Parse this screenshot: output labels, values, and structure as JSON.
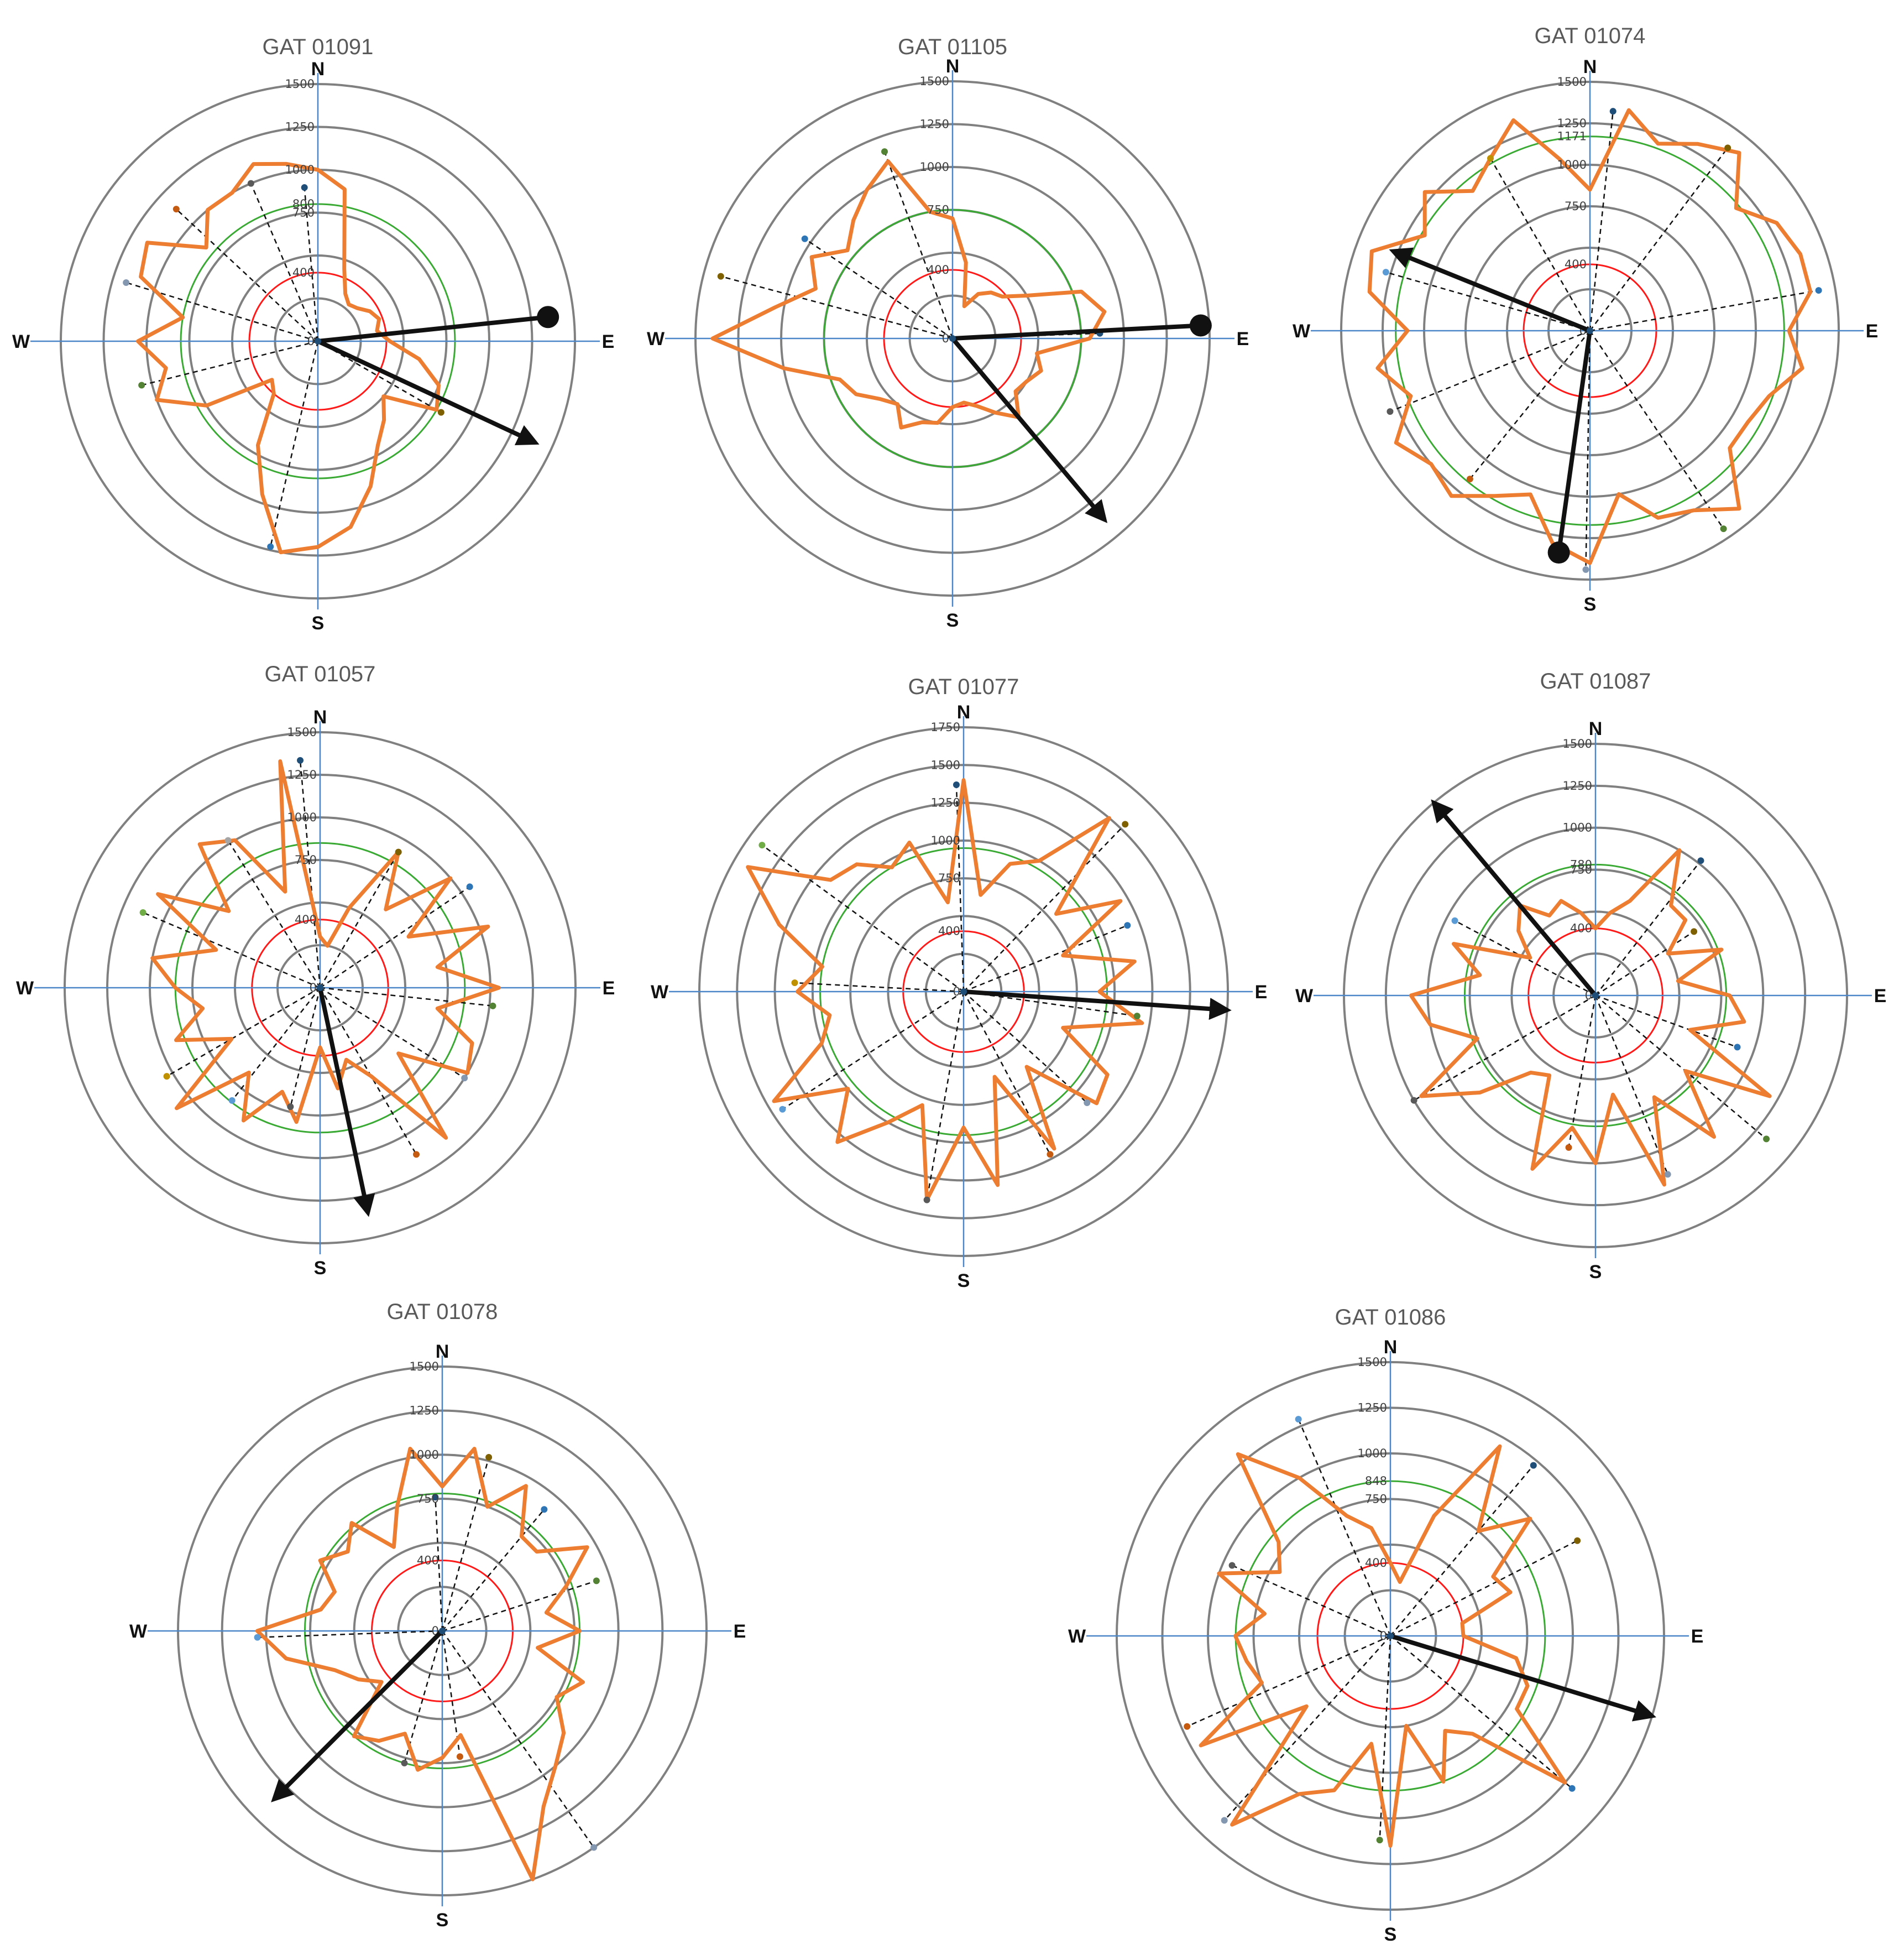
{
  "colors": {
    "rings": "#808080",
    "axes": "#4a86c8",
    "profile": "#ed7d31",
    "dashed": "#111111",
    "arrow": "#111111",
    "red_ring": "#ff1a1a",
    "green_ring": "#3aaa35"
  },
  "chart_data": [
    {
      "type": "radar",
      "title": "GAT 01091",
      "compass": [
        "N",
        "E",
        "S",
        "W"
      ],
      "rlim": [
        0,
        1500
      ],
      "ticks": [
        "0",
        "400",
        "750",
        "800",
        "1000",
        "1250",
        "1500"
      ],
      "reference_rings": {
        "red": 400,
        "green": 800
      },
      "profile": {
        "angles": [
          0,
          10,
          20,
          30,
          40,
          50,
          60,
          70,
          80,
          90,
          100,
          110,
          120,
          130,
          140,
          150,
          160,
          170,
          180,
          190,
          200,
          210,
          220,
          230,
          240,
          250,
          260,
          270,
          280,
          290,
          300,
          310,
          320,
          330,
          340,
          350
        ],
        "values": [
          1000,
          900,
          450,
          320,
          280,
          300,
          350,
          380,
          350,
          420,
          600,
          750,
          800,
          500,
          600,
          700,
          900,
          1100,
          1200,
          1250,
          950,
          700,
          400,
          350,
          750,
          1000,
          900,
          1050,
          800,
          1100,
          1150,
          850,
          1000,
          1000,
          1100,
          1050
        ]
      },
      "spokes": [
        {
          "angle": -5,
          "value": 900
        },
        {
          "angle": 120,
          "value": 830
        },
        {
          "angle": 193,
          "value": 1230
        },
        {
          "angle": 256,
          "value": 1060
        },
        {
          "angle": 287,
          "value": 1170
        },
        {
          "angle": 313,
          "value": 1130
        },
        {
          "angle": 337,
          "value": 1000
        }
      ],
      "arrow": {
        "angle": 115,
        "value": 1400
      },
      "dot_arrow": {
        "angle": 84,
        "value": 1350
      }
    },
    {
      "type": "radar",
      "title": "GAT 01105",
      "compass": [
        "N",
        "E",
        "S",
        "W"
      ],
      "rlim": [
        0,
        1500
      ],
      "ticks": [
        "0",
        "400",
        "750",
        "1000",
        "1250",
        "1500"
      ],
      "reference_rings": {
        "red": 400,
        "green": 750
      },
      "profile": {
        "angles": [
          0,
          10,
          20,
          30,
          40,
          50,
          60,
          70,
          80,
          90,
          100,
          110,
          120,
          130,
          140,
          150,
          160,
          170,
          180,
          190,
          200,
          210,
          220,
          230,
          240,
          250,
          260,
          270,
          280,
          290,
          300,
          310,
          320,
          330,
          340,
          350
        ],
        "values": [
          700,
          450,
          200,
          300,
          350,
          380,
          500,
          800,
          900,
          800,
          500,
          550,
          500,
          480,
          600,
          500,
          420,
          380,
          400,
          500,
          520,
          600,
          500,
          550,
          650,
          700,
          1000,
          1400,
          1050,
          850,
          950,
          800,
          900,
          1000,
          1100,
          750
        ]
      },
      "spokes": [
        {
          "angle": 88,
          "value": 860
        },
        {
          "angle": 285,
          "value": 1400
        },
        {
          "angle": 304,
          "value": 1040
        },
        {
          "angle": 340,
          "value": 1160
        }
      ],
      "arrow": {
        "angle": 140,
        "value": 1380
      },
      "dot_arrow": {
        "angle": 87,
        "value": 1450
      }
    },
    {
      "type": "radar",
      "title": "GAT 01074",
      "compass": [
        "N",
        "E",
        "S",
        "W"
      ],
      "rlim": [
        0,
        1500
      ],
      "ticks": [
        "0",
        "400",
        "750",
        "1000",
        "1171",
        "1250",
        "1500"
      ],
      "reference_rings": {
        "red": 400,
        "green": 1171
      },
      "profile": {
        "angles": [
          0,
          10,
          20,
          30,
          40,
          50,
          60,
          70,
          80,
          90,
          100,
          110,
          120,
          130,
          140,
          150,
          160,
          170,
          180,
          190,
          200,
          210,
          220,
          230,
          240,
          250,
          260,
          270,
          280,
          290,
          300,
          310,
          320,
          330,
          340,
          350
        ],
        "values": [
          850,
          1350,
          1200,
          1300,
          1400,
          1150,
          1300,
          1350,
          1350,
          1200,
          1300,
          1150,
          1100,
          1100,
          1400,
          1250,
          1200,
          1000,
          1400,
          1300,
          1050,
          1150,
          1300,
          1250,
          1350,
          1150,
          1300,
          1100,
          1350,
          1400,
          1150,
          1300,
          1100,
          1200,
          1350,
          1050
        ]
      },
      "spokes": [
        {
          "angle": 6,
          "value": 1330
        },
        {
          "angle": 37,
          "value": 1380
        },
        {
          "angle": 80,
          "value": 1400
        },
        {
          "angle": 146,
          "value": 1440
        },
        {
          "angle": 181,
          "value": 1440
        },
        {
          "angle": 219,
          "value": 1150
        },
        {
          "angle": 248,
          "value": 1300
        },
        {
          "angle": 286,
          "value": 1280
        },
        {
          "angle": 330,
          "value": 1200
        }
      ],
      "arrow": {
        "angle": 292,
        "value": 1280
      },
      "dot_arrow": {
        "angle": 188,
        "value": 1350
      }
    },
    {
      "type": "radar",
      "title": "GAT 01057",
      "compass": [
        "N",
        "E",
        "S",
        "W"
      ],
      "rlim": [
        0,
        1500
      ],
      "ticks": [
        "0",
        "400",
        "750",
        "1000",
        "1250",
        "1500"
      ],
      "reference_rings": {
        "red": 400,
        "green": 850
      },
      "profile": {
        "angles": [
          0,
          10,
          20,
          30,
          40,
          50,
          60,
          70,
          80,
          90,
          100,
          110,
          120,
          130,
          140,
          150,
          160,
          170,
          180,
          190,
          200,
          210,
          220,
          230,
          240,
          250,
          260,
          270,
          280,
          290,
          300,
          310,
          320,
          330,
          340,
          350
        ],
        "values": [
          300,
          250,
          500,
          920,
          600,
          1000,
          600,
          1050,
          700,
          1050,
          700,
          950,
          1000,
          600,
          1150,
          600,
          450,
          600,
          350,
          800,
          650,
          900,
          650,
          1100,
          600,
          900,
          700,
          850,
          1000,
          650,
          1100,
          700,
          1100,
          1000,
          600,
          1350
        ]
      },
      "spokes": [
        {
          "angle": -5,
          "value": 1340
        },
        {
          "angle": 30,
          "value": 920
        },
        {
          "angle": 56,
          "value": 1060
        },
        {
          "angle": 96,
          "value": 1020
        },
        {
          "angle": 122,
          "value": 1000
        },
        {
          "angle": 150,
          "value": 1130
        },
        {
          "angle": 194,
          "value": 720
        },
        {
          "angle": 218,
          "value": 840
        },
        {
          "angle": 240,
          "value": 1040
        },
        {
          "angle": 293,
          "value": 1130
        },
        {
          "angle": 328,
          "value": 1020
        }
      ],
      "arrow": {
        "angle": 168,
        "value": 1350
      }
    },
    {
      "type": "radar",
      "title": "GAT 01077",
      "compass": [
        "N",
        "E",
        "S",
        "W"
      ],
      "rlim": [
        0,
        1750
      ],
      "ticks": [
        "0",
        "400",
        "750",
        "1000",
        "1250",
        "1500",
        "1750"
      ],
      "reference_rings": {
        "red": 400,
        "green": 950
      },
      "profile": {
        "angles": [
          0,
          10,
          20,
          30,
          40,
          50,
          60,
          70,
          80,
          90,
          100,
          110,
          120,
          130,
          140,
          150,
          160,
          170,
          180,
          190,
          200,
          210,
          220,
          230,
          240,
          250,
          260,
          270,
          280,
          290,
          300,
          310,
          320,
          330,
          340,
          350
        ],
        "values": [
          1400,
          650,
          900,
          1000,
          1500,
          800,
          1200,
          700,
          1150,
          900,
          1200,
          700,
          1100,
          1150,
          650,
          1200,
          600,
          1300,
          900,
          1400,
          800,
          1000,
          1300,
          1000,
          1450,
          1000,
          900,
          1100,
          950,
          1300,
          1650,
          1150,
          1100,
          950,
          1050,
          600
        ]
      },
      "spokes": [
        {
          "angle": -2,
          "value": 1370
        },
        {
          "angle": 44,
          "value": 1540
        },
        {
          "angle": 68,
          "value": 1170
        },
        {
          "angle": 98,
          "value": 1160
        },
        {
          "angle": 132,
          "value": 1100
        },
        {
          "angle": 152,
          "value": 1220
        },
        {
          "angle": 190,
          "value": 1400
        },
        {
          "angle": 237,
          "value": 1430
        },
        {
          "angle": 273,
          "value": 1120
        },
        {
          "angle": 306,
          "value": 1650
        }
      ],
      "arrow": {
        "angle": 94,
        "value": 1750
      }
    },
    {
      "type": "radar",
      "title": "GAT 01087",
      "compass": [
        "N",
        "E",
        "S",
        "W"
      ],
      "rlim": [
        0,
        1500
      ],
      "ticks": [
        "0",
        "400",
        "750",
        "780",
        "1000",
        "1250",
        "1500"
      ],
      "reference_rings": {
        "red": 400,
        "green": 780
      },
      "profile": {
        "angles": [
          0,
          10,
          20,
          30,
          40,
          50,
          60,
          70,
          80,
          90,
          100,
          110,
          120,
          130,
          140,
          150,
          160,
          170,
          180,
          190,
          200,
          210,
          220,
          230,
          240,
          250,
          260,
          270,
          280,
          290,
          300,
          310,
          320,
          330,
          340,
          350
        ],
        "values": [
          400,
          500,
          600,
          1000,
          700,
          700,
          500,
          800,
          500,
          800,
          900,
          600,
          1200,
          700,
          1100,
          700,
          1200,
          600,
          1000,
          800,
          1100,
          550,
          600,
          900,
          1200,
          750,
          1000,
          1100,
          700,
          900,
          450,
          600,
          700,
          550,
          600,
          500
        ]
      },
      "spokes": [
        {
          "angle": 38,
          "value": 1020
        },
        {
          "angle": 57,
          "value": 700
        },
        {
          "angle": 110,
          "value": 900
        },
        {
          "angle": 130,
          "value": 1330
        },
        {
          "angle": 158,
          "value": 1150
        },
        {
          "angle": 190,
          "value": 920
        },
        {
          "angle": 240,
          "value": 1250
        },
        {
          "angle": 298,
          "value": 950
        }
      ],
      "arrow": {
        "angle": 320,
        "value": 1500
      }
    },
    {
      "type": "radar",
      "title": "GAT 01078",
      "compass": [
        "N",
        "E",
        "S",
        "W"
      ],
      "rlim": [
        0,
        1500
      ],
      "ticks": [
        "0",
        "400",
        "750",
        "1000",
        "1250",
        "1500"
      ],
      "reference_rings": {
        "red": 400,
        "green": 780
      },
      "profile": {
        "angles": [
          0,
          10,
          20,
          30,
          40,
          50,
          60,
          70,
          80,
          90,
          100,
          110,
          120,
          130,
          140,
          150,
          160,
          170,
          180,
          190,
          200,
          210,
          220,
          230,
          240,
          250,
          260,
          270,
          280,
          290,
          300,
          310,
          320,
          330,
          340,
          350
        ],
        "values": [
          820,
          1050,
          750,
          950,
          700,
          700,
          950,
          750,
          600,
          780,
          550,
          850,
          750,
          900,
          1000,
          1150,
          1500,
          600,
          720,
          800,
          620,
          720,
          780,
          450,
          550,
          650,
          900,
          1050,
          700,
          650,
          800,
          700,
          800,
          550,
          750,
          1050
        ]
      },
      "spokes": [
        {
          "angle": -3,
          "value": 760
        },
        {
          "angle": 15,
          "value": 1020
        },
        {
          "angle": 40,
          "value": 900
        },
        {
          "angle": 72,
          "value": 920
        },
        {
          "angle": 145,
          "value": 1500
        },
        {
          "angle": 172,
          "value": 720
        },
        {
          "angle": 196,
          "value": 780
        },
        {
          "angle": 268,
          "value": 1050
        }
      ],
      "arrow": {
        "angle": 225,
        "value": 1350
      }
    },
    {
      "type": "radar",
      "title": "GAT 01086",
      "compass": [
        "N",
        "E",
        "S",
        "W"
      ],
      "rlim": [
        0,
        1500
      ],
      "ticks": [
        "0",
        "400",
        "750",
        "848",
        "1000",
        "1250",
        "1500"
      ],
      "reference_rings": {
        "red": 400,
        "green": 848
      },
      "profile": {
        "angles": [
          0,
          10,
          20,
          30,
          40,
          50,
          60,
          70,
          80,
          90,
          100,
          110,
          120,
          130,
          140,
          150,
          160,
          170,
          180,
          190,
          200,
          210,
          220,
          230,
          240,
          250,
          260,
          270,
          280,
          290,
          300,
          310,
          320,
          330,
          340,
          350
        ],
        "values": [
          400,
          300,
          700,
          1200,
          750,
          1000,
          650,
          700,
          400,
          400,
          700,
          800,
          800,
          1250,
          700,
          600,
          850,
          500,
          1150,
          600,
          900,
          1000,
          1350,
          600,
          1200,
          750,
          800,
          850,
          700,
          1000,
          700,
          800,
          1300,
          1000,
          700,
          600
        ]
      },
      "spokes": [
        {
          "angle": 40,
          "value": 1220
        },
        {
          "angle": 63,
          "value": 1150
        },
        {
          "angle": 130,
          "value": 1300
        },
        {
          "angle": 183,
          "value": 1120
        },
        {
          "angle": 222,
          "value": 1360
        },
        {
          "angle": 246,
          "value": 1220
        },
        {
          "angle": 294,
          "value": 950
        },
        {
          "angle": 337,
          "value": 1290
        }
      ],
      "arrow": {
        "angle": 107,
        "value": 1500
      }
    }
  ]
}
